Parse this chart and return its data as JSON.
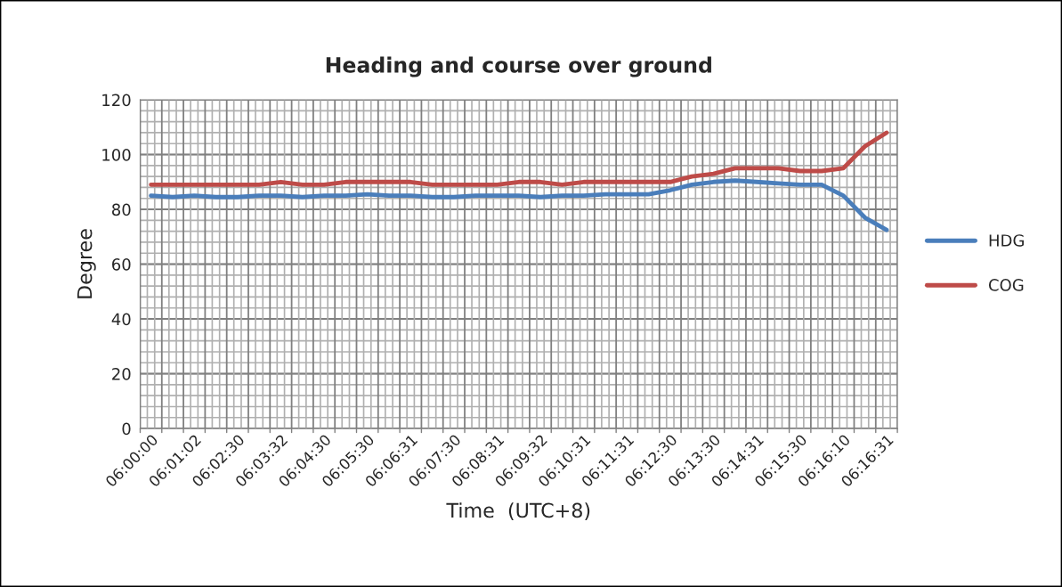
{
  "chart_data": {
    "type": "line",
    "title": "Heading and course over ground",
    "xlabel": "Time  (UTC+8)",
    "ylabel": "Degree",
    "categories": [
      "06:00:00",
      null,
      "06:01:02",
      null,
      "06:02:30",
      null,
      "06:03:32",
      null,
      "06:04:30",
      null,
      "06:05:30",
      null,
      "06:06:31",
      null,
      "06:07:30",
      null,
      "06:08:31",
      null,
      "06:09:32",
      null,
      "06:10:31",
      null,
      "06:11:31",
      null,
      "06:12:30",
      null,
      "06:13:30",
      null,
      "06:14:31",
      null,
      "06:15:30",
      null,
      "06:16:10",
      null,
      "06:16:31"
    ],
    "series": [
      {
        "name": "HDG",
        "color": "#4a7ebb",
        "values": [
          85,
          84.5,
          85,
          84.5,
          84.5,
          85,
          85,
          84.5,
          85,
          85,
          85.5,
          85,
          85,
          84.5,
          84.5,
          85,
          85,
          85,
          84.5,
          85,
          85,
          85.5,
          85.5,
          85.5,
          87,
          89,
          90,
          90.5,
          90,
          89.5,
          89,
          89,
          85,
          77,
          72.5
        ]
      },
      {
        "name": "COG",
        "color": "#be4b48",
        "values": [
          89,
          89,
          89,
          89,
          89,
          89,
          90,
          89,
          89,
          90,
          90,
          90,
          90,
          89,
          89,
          89,
          89,
          90,
          90,
          89,
          90,
          90,
          90,
          90,
          90,
          92,
          93,
          95,
          95,
          95,
          94,
          94,
          95,
          103,
          108
        ]
      }
    ],
    "ylim": [
      0,
      120
    ],
    "yticks": [
      0,
      20,
      40,
      60,
      80,
      100,
      120
    ],
    "grid": true,
    "legend": "right",
    "marker": "none",
    "line_style": "solid"
  }
}
